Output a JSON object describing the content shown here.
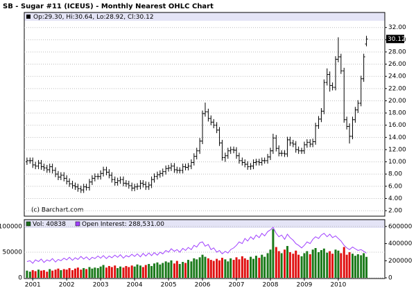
{
  "chart_data": [
    {
      "type": "ohlc",
      "title": "SB - Sugar #11 (ICEUS) - Monthly Nearest OHLC Chart",
      "legend_text": "Op:29.30, Hi:30.64, Lo:28.92, Cl:30.12",
      "last_label": "30.12",
      "copyright": "(c) Barchart.com",
      "color": "#000000",
      "grid": true,
      "xlim": [
        2000.75,
        2011.37
      ],
      "ylim": [
        1.1,
        33.1
      ],
      "yticks": [
        {
          "value": 2,
          "label": "2.00"
        },
        {
          "value": 4,
          "label": "4.00"
        },
        {
          "value": 6,
          "label": "6.00"
        },
        {
          "value": 8,
          "label": "8.00"
        },
        {
          "value": 10,
          "label": "10.00"
        },
        {
          "value": 12,
          "label": "12.00"
        },
        {
          "value": 14,
          "label": "14.00"
        },
        {
          "value": 16,
          "label": "16.00"
        },
        {
          "value": 18,
          "label": "18.00"
        },
        {
          "value": 20,
          "label": "20.00"
        },
        {
          "value": 22,
          "label": "22.00"
        },
        {
          "value": 24,
          "label": "24.00"
        },
        {
          "value": 26,
          "label": "26.00"
        },
        {
          "value": 28,
          "label": "28.00"
        },
        {
          "value": 30,
          "label": "30.00"
        },
        {
          "value": 32,
          "label": "32.00"
        }
      ],
      "x": [
        2000.83,
        2000.92,
        2001.0,
        2001.08,
        2001.17,
        2001.25,
        2001.33,
        2001.42,
        2001.5,
        2001.58,
        2001.67,
        2001.75,
        2001.83,
        2001.92,
        2002.0,
        2002.08,
        2002.17,
        2002.25,
        2002.33,
        2002.42,
        2002.5,
        2002.58,
        2002.67,
        2002.75,
        2002.83,
        2002.92,
        2003.0,
        2003.08,
        2003.17,
        2003.25,
        2003.33,
        2003.42,
        2003.5,
        2003.58,
        2003.67,
        2003.75,
        2003.83,
        2003.92,
        2004.0,
        2004.08,
        2004.17,
        2004.25,
        2004.33,
        2004.42,
        2004.5,
        2004.58,
        2004.67,
        2004.75,
        2004.83,
        2004.92,
        2005.0,
        2005.08,
        2005.17,
        2005.25,
        2005.33,
        2005.42,
        2005.5,
        2005.58,
        2005.67,
        2005.75,
        2005.83,
        2005.92,
        2006.0,
        2006.08,
        2006.17,
        2006.25,
        2006.33,
        2006.42,
        2006.5,
        2006.58,
        2006.67,
        2006.75,
        2006.83,
        2006.92,
        2007.0,
        2007.08,
        2007.17,
        2007.25,
        2007.33,
        2007.42,
        2007.5,
        2007.58,
        2007.67,
        2007.75,
        2007.83,
        2007.92,
        2008.0,
        2008.08,
        2008.17,
        2008.25,
        2008.33,
        2008.42,
        2008.5,
        2008.58,
        2008.67,
        2008.75,
        2008.83,
        2008.92,
        2009.0,
        2009.08,
        2009.17,
        2009.25,
        2009.33,
        2009.42,
        2009.5,
        2009.58,
        2009.67,
        2009.75,
        2009.83,
        2009.92,
        2010.0,
        2010.08,
        2010.17,
        2010.25,
        2010.33,
        2010.42,
        2010.5,
        2010.58,
        2010.67,
        2010.75,
        2010.83
      ],
      "open": [
        10.0,
        10.2,
        10.2,
        9.5,
        9.3,
        9.8,
        9.2,
        9.0,
        8.7,
        9.2,
        8.6,
        8.0,
        7.5,
        7.8,
        7.3,
        6.8,
        6.4,
        6.1,
        5.9,
        5.6,
        5.4,
        5.9,
        5.8,
        6.7,
        7.3,
        7.6,
        7.6,
        8.1,
        8.7,
        8.3,
        7.8,
        7.1,
        6.6,
        6.9,
        7.1,
        6.5,
        6.4,
        6.1,
        5.7,
        5.9,
        6.0,
        6.5,
        6.3,
        5.9,
        6.2,
        7.1,
        7.6,
        7.9,
        8.1,
        8.4,
        8.9,
        9.0,
        9.3,
        8.7,
        8.6,
        8.6,
        9.2,
        9.1,
        9.3,
        9.9,
        10.9,
        11.8,
        13.4,
        17.9,
        18.2,
        17.1,
        16.5,
        16.0,
        15.2,
        13.1,
        10.7,
        11.0,
        11.8,
        12.0,
        11.9,
        11.0,
        10.2,
        9.9,
        9.6,
        9.2,
        9.3,
        9.9,
        10.0,
        9.9,
        10.2,
        10.2,
        10.8,
        11.8,
        13.9,
        12.2,
        11.4,
        11.4,
        11.3,
        13.6,
        13.1,
        12.9,
        12.0,
        11.8,
        11.8,
        12.8,
        13.2,
        12.9,
        13.3,
        15.9,
        17.0,
        18.3,
        23.0,
        24.3,
        22.5,
        22.2,
        26.8,
        27.2,
        24.9,
        16.9,
        15.8,
        14.2,
        16.9,
        18.5,
        19.6,
        23.6,
        29.3
      ],
      "high": [
        10.7,
        10.7,
        10.7,
        10.0,
        10.3,
        10.3,
        9.7,
        9.5,
        9.7,
        9.7,
        9.1,
        8.5,
        8.3,
        8.3,
        7.8,
        7.3,
        6.9,
        6.6,
        6.4,
        6.1,
        6.4,
        6.4,
        7.2,
        7.8,
        8.1,
        8.1,
        8.6,
        9.2,
        9.2,
        8.8,
        8.3,
        7.6,
        7.4,
        7.6,
        7.6,
        7.0,
        6.9,
        6.6,
        6.4,
        6.5,
        7.0,
        7.0,
        6.8,
        6.7,
        7.6,
        8.1,
        8.4,
        8.6,
        8.9,
        9.4,
        9.5,
        9.8,
        9.8,
        9.2,
        9.1,
        9.7,
        9.7,
        9.8,
        10.4,
        11.4,
        12.3,
        13.9,
        18.4,
        19.7,
        18.7,
        17.6,
        17.0,
        16.5,
        15.7,
        13.6,
        11.5,
        12.3,
        12.5,
        12.5,
        12.4,
        11.5,
        10.7,
        10.4,
        10.1,
        9.8,
        10.4,
        10.5,
        10.5,
        10.7,
        10.7,
        11.3,
        12.3,
        14.6,
        14.4,
        12.7,
        11.9,
        11.9,
        14.1,
        14.1,
        13.6,
        13.4,
        12.5,
        12.3,
        13.3,
        13.7,
        13.7,
        13.8,
        16.4,
        17.5,
        18.8,
        23.5,
        25.3,
        24.8,
        23.0,
        27.3,
        30.4,
        27.7,
        25.4,
        17.4,
        16.3,
        17.4,
        19.0,
        20.1,
        24.1,
        27.7,
        30.64
      ],
      "low": [
        9.5,
        9.7,
        9.0,
        8.8,
        8.8,
        8.7,
        8.5,
        8.2,
        8.2,
        8.1,
        7.5,
        7.0,
        7.0,
        6.8,
        6.3,
        5.9,
        5.6,
        5.4,
        5.1,
        4.9,
        4.9,
        5.3,
        5.3,
        6.2,
        6.8,
        7.1,
        7.1,
        7.6,
        7.8,
        7.3,
        6.6,
        6.1,
        6.1,
        6.4,
        6.0,
        5.9,
        5.6,
        5.2,
        5.2,
        5.4,
        5.5,
        5.8,
        5.4,
        5.4,
        5.7,
        6.6,
        7.1,
        7.4,
        7.6,
        7.9,
        8.4,
        8.5,
        8.2,
        8.1,
        8.1,
        8.1,
        8.6,
        8.6,
        8.8,
        9.4,
        10.4,
        11.3,
        12.9,
        17.4,
        16.6,
        16.0,
        15.5,
        14.7,
        12.6,
        10.2,
        10.0,
        10.5,
        11.3,
        11.4,
        10.5,
        9.7,
        9.4,
        9.1,
        8.7,
        8.7,
        8.8,
        9.4,
        9.4,
        9.4,
        9.7,
        9.7,
        10.3,
        11.3,
        11.7,
        10.9,
        10.9,
        10.8,
        10.8,
        12.6,
        12.4,
        11.5,
        11.3,
        11.3,
        11.3,
        12.3,
        12.4,
        12.4,
        12.8,
        15.4,
        16.5,
        17.8,
        22.5,
        21.5,
        21.7,
        21.7,
        26.3,
        24.4,
        16.4,
        15.3,
        13.0,
        13.7,
        16.4,
        18.0,
        19.1,
        23.1,
        28.92
      ],
      "close": [
        10.2,
        10.2,
        9.5,
        9.3,
        9.8,
        9.2,
        9.0,
        8.7,
        9.2,
        8.6,
        8.0,
        7.5,
        7.8,
        7.3,
        6.8,
        6.4,
        6.1,
        5.9,
        5.6,
        5.4,
        5.9,
        5.8,
        6.7,
        7.3,
        7.6,
        7.6,
        8.1,
        8.7,
        8.3,
        7.8,
        7.1,
        6.6,
        6.9,
        7.1,
        6.5,
        6.4,
        6.1,
        5.7,
        5.9,
        6.0,
        6.5,
        6.3,
        5.9,
        6.2,
        7.1,
        7.6,
        7.9,
        8.1,
        8.4,
        8.9,
        9.0,
        9.3,
        8.7,
        8.6,
        8.6,
        9.2,
        9.1,
        9.3,
        9.9,
        10.9,
        11.8,
        13.4,
        17.9,
        18.2,
        17.1,
        16.5,
        16.0,
        15.2,
        13.1,
        10.7,
        11.0,
        11.8,
        12.0,
        11.9,
        11.0,
        10.2,
        9.9,
        9.6,
        9.2,
        9.3,
        9.9,
        10.0,
        9.9,
        10.2,
        10.2,
        10.8,
        11.8,
        13.9,
        12.2,
        11.4,
        11.4,
        11.3,
        13.6,
        13.1,
        12.9,
        12.0,
        11.8,
        11.8,
        12.8,
        13.2,
        12.9,
        13.3,
        15.9,
        17.0,
        18.3,
        23.0,
        24.3,
        22.5,
        22.2,
        26.8,
        27.2,
        24.9,
        16.9,
        15.8,
        14.2,
        16.9,
        18.5,
        19.6,
        23.6,
        27.2,
        30.12
      ]
    },
    {
      "type": "volume",
      "grid": true,
      "ylim": [
        0,
        112000
      ],
      "yticks": [
        0,
        50000,
        100000
      ],
      "y2lim": [
        0,
        672000
      ],
      "y2ticks": [
        0,
        200000,
        400000,
        600000
      ],
      "xticks": [
        2001,
        2002,
        2003,
        2004,
        2005,
        2006,
        2007,
        2008,
        2009,
        2010
      ],
      "series": [
        {
          "name": "Vol: 40838",
          "color": "#1a6e1a",
          "up_color": "#1a7a1a",
          "down_color": "#e01010",
          "values": [
            14000,
            12000,
            15000,
            13000,
            16000,
            14000,
            15000,
            12000,
            17000,
            14000,
            16000,
            18000,
            15000,
            17000,
            16000,
            19000,
            15000,
            18000,
            20000,
            16000,
            19000,
            17000,
            21000,
            18000,
            20000,
            19000,
            22000,
            25000,
            20000,
            23000,
            21000,
            24000,
            19000,
            22000,
            20000,
            23000,
            21000,
            24000,
            22000,
            26000,
            24000,
            21000,
            25000,
            27000,
            23000,
            28000,
            30000,
            26000,
            29000,
            32000,
            30000,
            34000,
            28000,
            33000,
            27000,
            31000,
            29000,
            35000,
            32000,
            38000,
            36000,
            40000,
            45000,
            41000,
            38000,
            35000,
            33000,
            37000,
            34000,
            39000,
            36000,
            32000,
            38000,
            35000,
            40000,
            36000,
            42000,
            38000,
            35000,
            41000,
            37000,
            43000,
            39000,
            45000,
            41000,
            48000,
            55000,
            95000,
            60000,
            52000,
            48000,
            55000,
            62000,
            50000,
            47000,
            53000,
            45000,
            42000,
            48000,
            52000,
            46000,
            55000,
            58000,
            50000,
            54000,
            57000,
            49000,
            52000,
            47000,
            55000,
            53000,
            48000,
            60000,
            45000,
            50000,
            47000,
            43000,
            46000,
            44000,
            48000,
            40838
          ]
        },
        {
          "name": "Open Interest: 288,531.00",
          "color": "#a040ff",
          "axis": "y2",
          "values": [
            190000,
            200000,
            170000,
            210000,
            190000,
            220000,
            180000,
            210000,
            195000,
            225000,
            185000,
            215000,
            200000,
            230000,
            210000,
            240000,
            205000,
            235000,
            215000,
            250000,
            220000,
            245000,
            210000,
            240000,
            225000,
            255000,
            230000,
            260000,
            225000,
            255000,
            235000,
            265000,
            240000,
            270000,
            230000,
            260000,
            245000,
            275000,
            250000,
            280000,
            245000,
            285000,
            255000,
            290000,
            260000,
            295000,
            265000,
            300000,
            280000,
            320000,
            300000,
            340000,
            310000,
            330000,
            300000,
            345000,
            320000,
            355000,
            330000,
            380000,
            360000,
            410000,
            420000,
            370000,
            390000,
            330000,
            350000,
            300000,
            320000,
            280000,
            310000,
            290000,
            330000,
            350000,
            380000,
            420000,
            400000,
            460000,
            430000,
            480000,
            450000,
            500000,
            470000,
            520000,
            490000,
            540000,
            560000,
            590000,
            520000,
            480000,
            500000,
            450000,
            510000,
            470000,
            440000,
            400000,
            380000,
            350000,
            380000,
            420000,
            400000,
            450000,
            480000,
            460000,
            500000,
            520000,
            480000,
            510000,
            470000,
            490000,
            460000,
            430000,
            380000,
            350000,
            330000,
            360000,
            340000,
            320000,
            330000,
            310000,
            288531
          ]
        }
      ]
    }
  ]
}
